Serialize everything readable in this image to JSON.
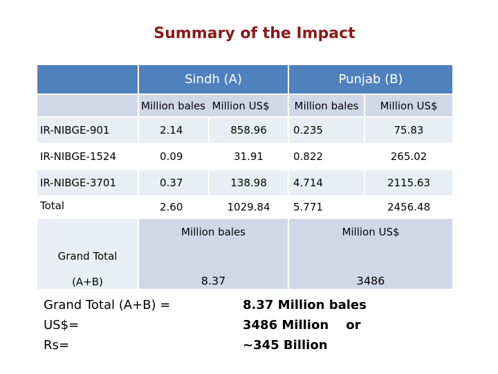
{
  "title": "Summary of the Impact",
  "table": {
    "group_headers": [
      "Sindh (A)",
      "Punjab (B)"
    ],
    "sub_headers": [
      "Million bales",
      "Million US$",
      "Million bales",
      "Million US$"
    ],
    "rows": [
      {
        "label": "IR-NIBGE-901",
        "values": [
          "2.14",
          "858.96",
          "0.235",
          "75.83"
        ]
      },
      {
        "label": "IR-NIBGE-1524",
        "values": [
          "0.09",
          "31.91",
          "0.822",
          "265.02"
        ]
      },
      {
        "label": "IR-NIBGE-3701",
        "values": [
          "0.37",
          "138.98",
          "4.714",
          "2115.63"
        ]
      },
      {
        "label": "Total",
        "values": [
          "2.60",
          "1029.84",
          "5.771",
          "2456.48"
        ]
      }
    ],
    "grand_total": {
      "label_line1": "Grand Total",
      "label_line2": "(A+B)",
      "unit_bales": "Million bales",
      "unit_usd": "Million US$",
      "value_bales": "8.37",
      "value_usd": "3486"
    }
  },
  "footer": {
    "left": [
      "Grand Total (A+B) =",
      "US$=",
      "Rs="
    ],
    "right": [
      "8.37 Million bales",
      "3486 Million    or",
      "~345 Billion"
    ]
  }
}
